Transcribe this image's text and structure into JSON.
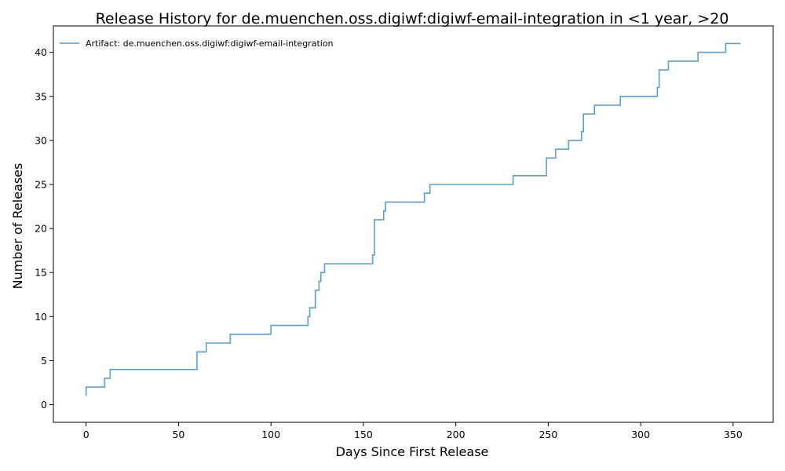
{
  "chart_data": {
    "type": "line",
    "step": true,
    "title": "Release History for de.muenchen.oss.digiwf:digiwf-email-integration in <1 year, >20",
    "xlabel": "Days Since First Release",
    "ylabel": "Number of Releases",
    "xlim": [
      -17.7,
      371.7
    ],
    "ylim": [
      -2.0,
      43.0
    ],
    "xticks": [
      0,
      50,
      100,
      150,
      200,
      250,
      300,
      350
    ],
    "yticks": [
      0,
      5,
      10,
      15,
      20,
      25,
      30,
      35,
      40
    ],
    "grid": false,
    "legend_position": "top-left",
    "series": [
      {
        "name": "Artifact: de.muenchen.oss.digiwf:digiwf-email-integration",
        "color": "#5b9fcc",
        "x": [
          0,
          0,
          10,
          12,
          13,
          60,
          60,
          65,
          78,
          100,
          120,
          120,
          121,
          122,
          124,
          126,
          127,
          128,
          129,
          155,
          155,
          156,
          161,
          162,
          162,
          183,
          186,
          231,
          249,
          254,
          261,
          268,
          269,
          271,
          275,
          289,
          309,
          310,
          315,
          331,
          346,
          354
        ],
        "y": [
          1,
          2,
          3,
          3,
          4,
          5,
          6,
          7,
          8,
          9,
          10,
          10,
          11,
          11,
          13,
          14,
          15,
          15,
          16,
          17,
          17,
          21,
          22,
          23,
          23,
          24,
          25,
          26,
          28,
          29,
          30,
          31,
          33,
          33,
          34,
          35,
          36,
          38,
          39,
          40,
          41,
          41
        ]
      }
    ]
  }
}
